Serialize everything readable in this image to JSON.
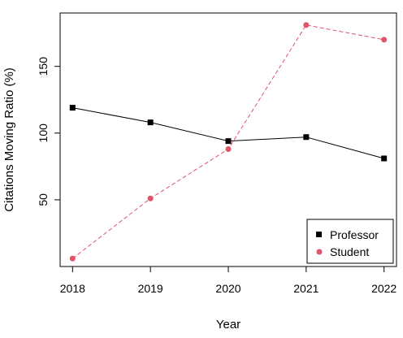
{
  "chart_data": {
    "type": "line",
    "title": "",
    "xlabel": "Year",
    "ylabel": "Citations Moving Ratio (%)",
    "x": [
      2018,
      2019,
      2020,
      2021,
      2022
    ],
    "x_tick_labels": [
      "2018",
      "2019",
      "2020",
      "2021",
      "2022"
    ],
    "y_ticks": [
      50,
      100,
      150
    ],
    "y_tick_labels": [
      "50",
      "100",
      "150"
    ],
    "xlim": [
      2017.84,
      2022.16
    ],
    "ylim": [
      0,
      190
    ],
    "grid": false,
    "legend_position": "bottom-right",
    "series": [
      {
        "name": "Professor",
        "values": [
          119,
          108,
          94,
          97,
          81
        ],
        "color": "#000000",
        "line_style": "solid",
        "marker": "square"
      },
      {
        "name": "Student",
        "values": [
          6,
          51,
          88,
          181,
          170
        ],
        "color": "#DF536B",
        "line_style": "dashed",
        "marker": "circle"
      }
    ]
  }
}
